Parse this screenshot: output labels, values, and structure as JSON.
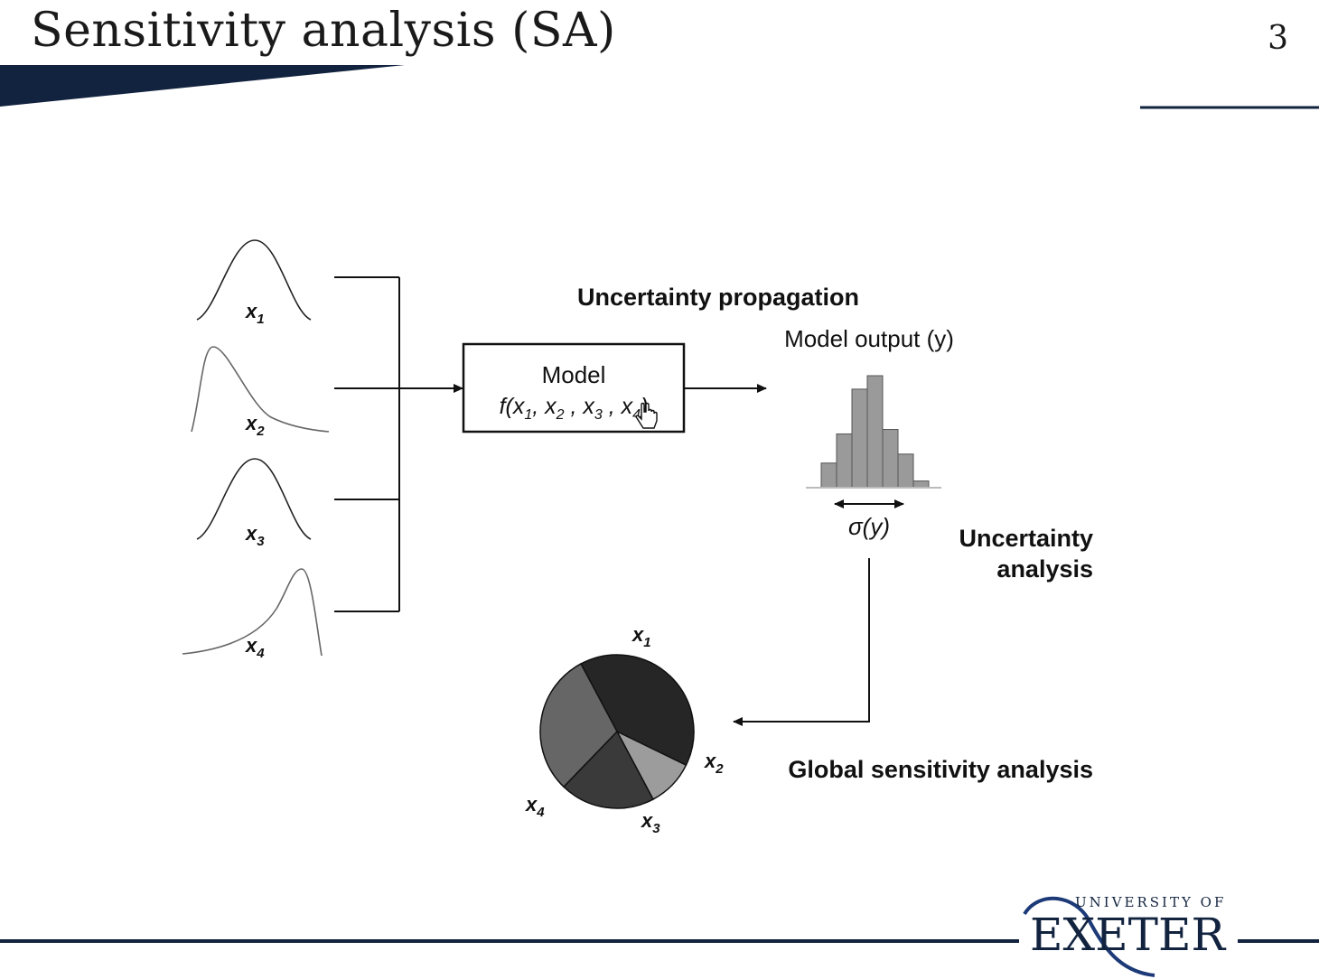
{
  "slide": {
    "title": "Sensitivity analysis (SA)",
    "page_number": "3",
    "accent_color": "#12233f"
  },
  "diagram": {
    "inputs": [
      "x1",
      "x2",
      "x3",
      "x4"
    ],
    "model_title": "Model",
    "model_function": "f(x1, x2 , x3 , x4)",
    "uncertainty_propagation_label": "Uncertainty propagation",
    "model_output_label": "Model output (y)",
    "sigma_label": "σ(y)",
    "uncertainty_analysis_label_line1": "Uncertainty",
    "uncertainty_analysis_label_line2": "analysis",
    "global_sa_label": "Global sensitivity analysis",
    "pie_labels": [
      "x1",
      "x2",
      "x3",
      "x4"
    ],
    "histogram_relative_heights": [
      0.22,
      0.48,
      0.88,
      1.0,
      0.52,
      0.3,
      0.06
    ],
    "pie_shares": {
      "x1": 0.4,
      "x2": 0.1,
      "x3": 0.2,
      "x4": 0.3
    }
  },
  "logo": {
    "line1": "UNIVERSITY OF",
    "line2": "EXETER"
  }
}
